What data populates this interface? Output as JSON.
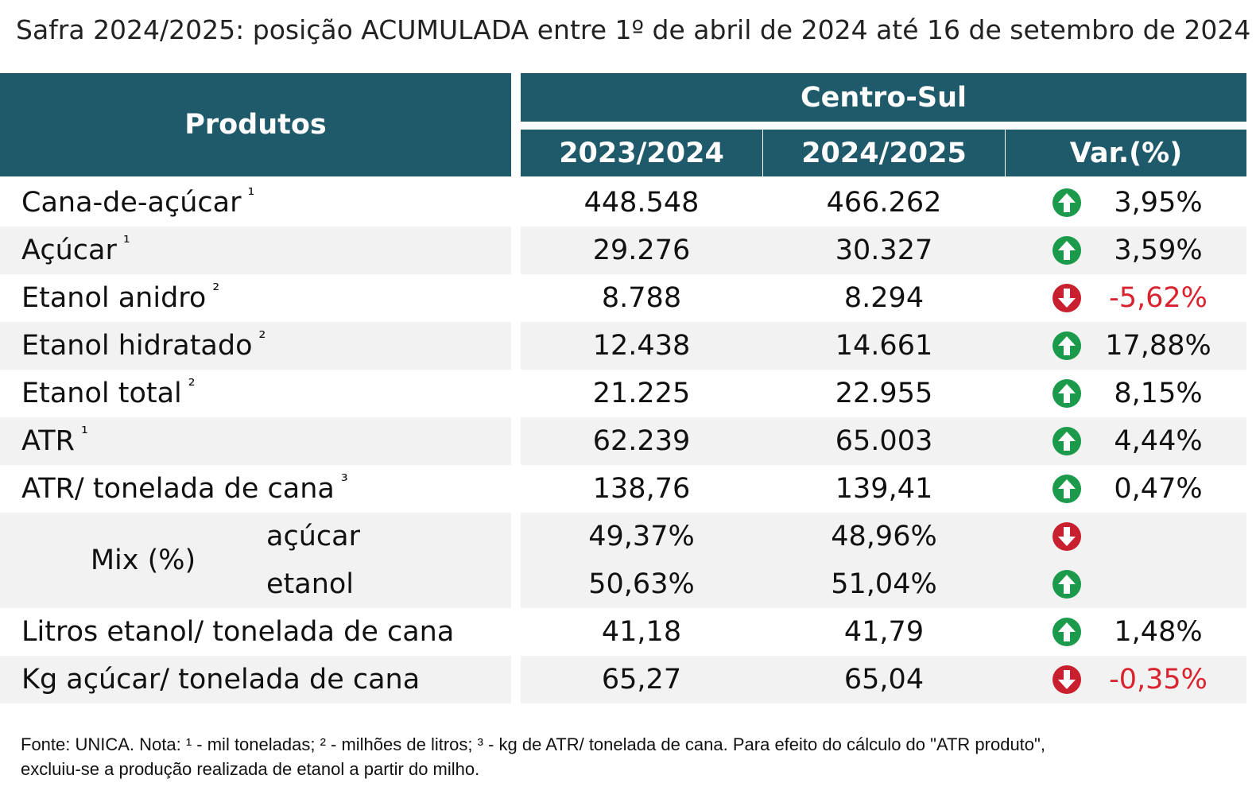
{
  "title": "Safra 2024/2025: posição ACUMULADA entre 1º de abril de 2024 até 16 de setembro de 2024",
  "header": {
    "products": "Produtos",
    "region": "Centro-Sul",
    "columns": [
      "2023/2024",
      "2024/2025",
      "Var.(%)"
    ]
  },
  "rows": [
    {
      "label": "Cana-de-açúcar",
      "note": "¹",
      "values": [
        "448.548",
        "466.262"
      ],
      "trend": "up",
      "var": "3,95%"
    },
    {
      "label": "Açúcar",
      "note": "¹",
      "values": [
        "29.276",
        "30.327"
      ],
      "trend": "up",
      "var": "3,59%"
    },
    {
      "label": "Etanol anidro",
      "note": "²",
      "values": [
        "8.788",
        "8.294"
      ],
      "trend": "down",
      "var": "-5,62%"
    },
    {
      "label": "Etanol hidratado",
      "note": "²",
      "values": [
        "12.438",
        "14.661"
      ],
      "trend": "up",
      "var": "17,88%"
    },
    {
      "label": "Etanol total",
      "note": "²",
      "values": [
        "21.225",
        "22.955"
      ],
      "trend": "up",
      "var": "8,15%"
    },
    {
      "label": "ATR",
      "note": "¹",
      "values": [
        "62.239",
        "65.003"
      ],
      "trend": "up",
      "var": "4,44%"
    },
    {
      "label": "ATR/ tonelada de cana",
      "note": "³",
      "values": [
        "138,76",
        "139,41"
      ],
      "trend": "up",
      "var": "0,47%"
    },
    {
      "label": "Mix (%)",
      "subrows": [
        {
          "label": "açúcar",
          "values": [
            "49,37%",
            "48,96%"
          ],
          "trend": "down"
        },
        {
          "label": "etanol",
          "values": [
            "50,63%",
            "51,04%"
          ],
          "trend": "up"
        }
      ]
    },
    {
      "label": "Litros etanol/ tonelada de cana",
      "values": [
        "41,18",
        "41,79"
      ],
      "trend": "up",
      "var": "1,48%"
    },
    {
      "label": "Kg açúcar/ tonelada de cana",
      "values": [
        "65,27",
        "65,04"
      ],
      "trend": "down",
      "var": "-0,35%"
    }
  ],
  "footer": [
    "Fonte: UNICA. Nota: ¹ - mil toneladas; ² - milhões de litros; ³ - kg de ATR/ tonelada de cana. Para efeito do cálculo do \"ATR produto\",",
    "excluiu-se a produção realizada de etanol a partir do milho."
  ]
}
